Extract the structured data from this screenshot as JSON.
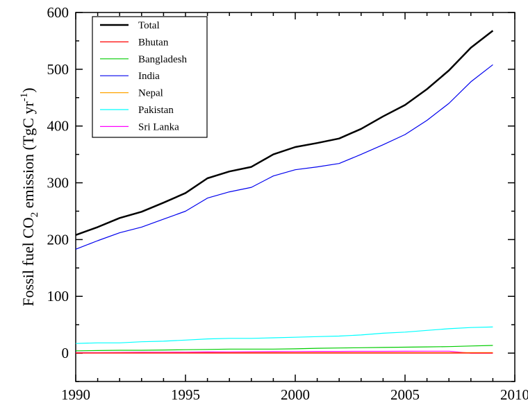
{
  "chart_data": {
    "type": "line",
    "title": "",
    "xlabel": "",
    "ylabel": {
      "main": "Fossil fuel CO",
      "sub": "2",
      "mid": " emission (TgC yr",
      "sup": "-1",
      "end": ")"
    },
    "xlim": [
      1990,
      2010
    ],
    "ylim": [
      -50,
      600
    ],
    "xticks": [
      1990,
      1995,
      2000,
      2005,
      2010
    ],
    "yticks": [
      0,
      100,
      200,
      300,
      400,
      500,
      600
    ],
    "grid": false,
    "legend_position": "top-left",
    "x": [
      1990,
      1991,
      1992,
      1993,
      1994,
      1995,
      1996,
      1997,
      1998,
      1999,
      2000,
      2001,
      2002,
      2003,
      2004,
      2005,
      2006,
      2007,
      2008,
      2009
    ],
    "series": [
      {
        "name": "Total",
        "color": "#000000",
        "stroke": 2.5,
        "values": [
          208,
          222,
          238,
          249,
          265,
          282,
          308,
          320,
          328,
          350,
          363,
          370,
          378,
          395,
          417,
          437,
          465,
          498,
          538,
          568
        ]
      },
      {
        "name": "Bhutan",
        "color": "#ff0000",
        "stroke": 1.2,
        "values": [
          0.1,
          0.1,
          0.1,
          0.1,
          0.1,
          0.1,
          0.1,
          0.1,
          0.1,
          0.1,
          0.1,
          0.1,
          0.1,
          0.1,
          0.1,
          0.1,
          0.1,
          0.1,
          0.1,
          0.1
        ]
      },
      {
        "name": "Bangladesh",
        "color": "#00cc00",
        "stroke": 1.2,
        "values": [
          4,
          4.5,
          5,
          5,
          5.5,
          6,
          6.5,
          7,
          7,
          7,
          7.5,
          8.5,
          9,
          9.5,
          10,
          10.5,
          11,
          11.5,
          12.5,
          13.5
        ]
      },
      {
        "name": "India",
        "color": "#0000ee",
        "stroke": 1.2,
        "values": [
          183,
          198,
          212,
          222,
          236,
          250,
          273,
          284,
          292,
          312,
          323,
          328,
          334,
          350,
          367,
          385,
          410,
          440,
          478,
          508
        ]
      },
      {
        "name": "Nepal",
        "color": "#ffa500",
        "stroke": 1.2,
        "values": [
          0.3,
          0.3,
          0.4,
          0.4,
          0.5,
          0.5,
          0.6,
          0.7,
          0.8,
          0.8,
          0.9,
          0.9,
          0.9,
          0.9,
          0.9,
          0.9,
          0.9,
          0.9,
          0.9,
          1
        ]
      },
      {
        "name": "Pakistan",
        "color": "#00ffff",
        "stroke": 1.2,
        "values": [
          17,
          18,
          18,
          20,
          21,
          23,
          25,
          26,
          26,
          27,
          28,
          29,
          30,
          32,
          35,
          37,
          40,
          43,
          45,
          46
        ]
      },
      {
        "name": "Sri Lanka",
        "color": "#ff00ff",
        "stroke": 1.2,
        "values": [
          1,
          1,
          1.2,
          1.4,
          1.5,
          1.7,
          2,
          2.2,
          2.4,
          2.6,
          2.8,
          3,
          3,
          3.1,
          3.2,
          3.3,
          3.4,
          3.4,
          0,
          0
        ]
      }
    ]
  }
}
